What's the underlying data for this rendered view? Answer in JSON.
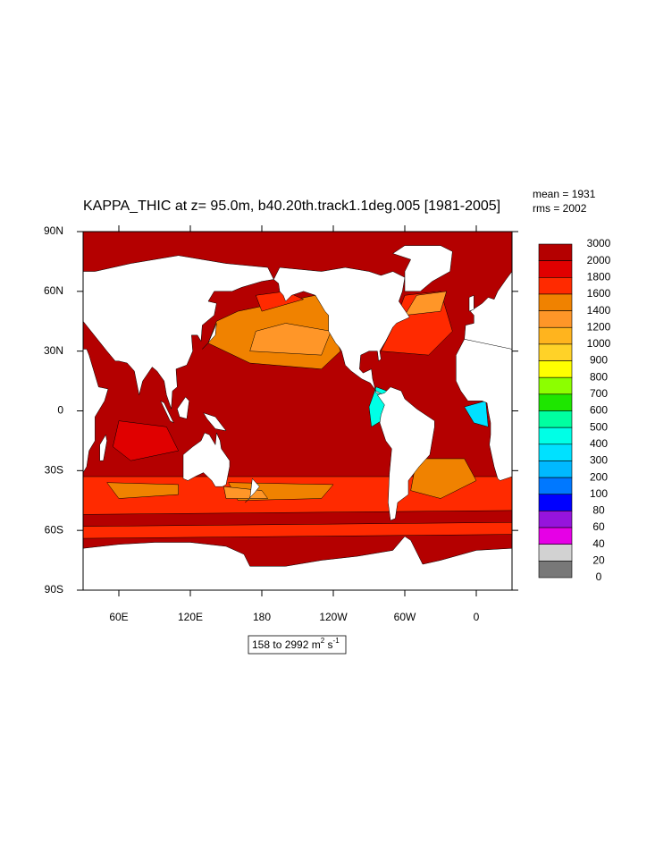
{
  "map": {
    "title": "KAPPA_THIC at z=  95.0m, b40.20th.track1.1deg.005 [1981-2005]",
    "stats": [
      "mean = 1931",
      "rms = 2002"
    ],
    "xlim": [
      30,
      390
    ],
    "ylim": [
      -90,
      90
    ],
    "lat_ticks": [
      {
        "value": 90,
        "label": "90N"
      },
      {
        "value": 60,
        "label": "60N"
      },
      {
        "value": 30,
        "label": "30N"
      },
      0,
      {
        "value": -30,
        "label": "30S"
      },
      {
        "value": -60,
        "label": "60S"
      },
      {
        "value": -90,
        "label": "90S"
      }
    ],
    "lon_ticks": [
      {
        "value": 60,
        "label": "60E"
      },
      {
        "value": 120,
        "label": "120E"
      },
      180,
      {
        "value": 240,
        "label": "120W"
      },
      {
        "value": 300,
        "label": "60W"
      },
      {
        "value": 360,
        "label": "0"
      }
    ],
    "colorbar": {
      "levels": [
        3000,
        2000,
        1800,
        1600,
        1400,
        1200,
        1000,
        900,
        800,
        700,
        600,
        500,
        400,
        300,
        200,
        100,
        80,
        60,
        40,
        20,
        0
      ],
      "colors": [
        "#b40000",
        "#e00000",
        "#ff2a00",
        "#f08200",
        "#ff9628",
        "#ffb41e",
        "#ffd228",
        "#ffff00",
        "#8cff00",
        "#1ee600",
        "#00ffa0",
        "#00ffe6",
        "#00e1ff",
        "#00b9ff",
        "#0078ff",
        "#0000ff",
        "#9614dc",
        "#e600e6",
        "#d2d2d2",
        "#787878"
      ]
    },
    "units": {
      "text": "158 to 2992 m",
      "sup1": "2",
      "text2": " s",
      "sup2": "-1"
    }
  }
}
